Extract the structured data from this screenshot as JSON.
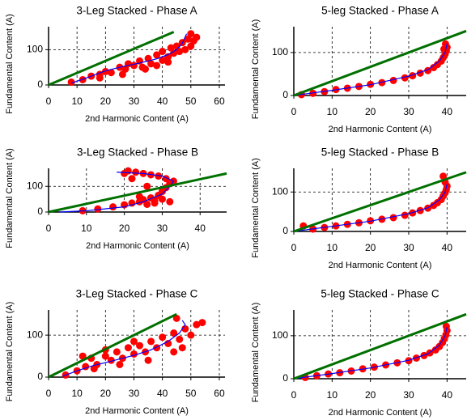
{
  "chart_data": [
    {
      "type": "scatter",
      "title": "3-Leg Stacked - Phase A",
      "x_label": "2nd Harmonic Content (A)",
      "y_label": "Fundamental Content (A)",
      "xlim": [
        0,
        62
      ],
      "ylim": [
        0,
        165
      ],
      "xticks": [
        0,
        10,
        20,
        30,
        40,
        50,
        60
      ],
      "yticks": [
        0,
        100
      ],
      "grid": true,
      "series": [
        {
          "mode": "markers",
          "color": "#ff0000",
          "x": [
            8,
            12,
            15,
            18,
            20,
            22,
            25,
            27,
            28,
            30,
            32,
            33,
            35,
            36,
            38,
            40,
            40,
            42,
            43,
            44,
            45,
            46,
            47,
            48,
            49,
            50,
            50,
            51,
            52,
            26,
            34,
            42,
            18,
            38
          ],
          "values": [
            8,
            15,
            25,
            30,
            38,
            35,
            50,
            45,
            60,
            55,
            68,
            50,
            75,
            60,
            85,
            70,
            95,
            80,
            105,
            90,
            110,
            95,
            120,
            100,
            130,
            110,
            145,
            125,
            135,
            30,
            45,
            65,
            20,
            55
          ]
        },
        {
          "mode": "line",
          "color": "#0000ff",
          "x": [
            8,
            14,
            20,
            26,
            32,
            38,
            42,
            45,
            47,
            48.5
          ],
          "values": [
            5,
            22,
            40,
            52,
            62,
            74,
            86,
            100,
            118,
            145
          ]
        },
        {
          "mode": "line",
          "color": "#007000",
          "x": [
            0,
            44
          ],
          "values": [
            0,
            150
          ]
        }
      ]
    },
    {
      "type": "scatter",
      "title": "5-leg Stacked - Phase A",
      "x_label": "2nd Harmonic Content (A)",
      "y_label": "Fundamental Content (A)",
      "xlim": [
        0,
        45
      ],
      "ylim": [
        0,
        160
      ],
      "xticks": [
        0,
        10,
        20,
        30,
        40
      ],
      "yticks": [
        0,
        100
      ],
      "grid": true,
      "series": [
        {
          "mode": "markers",
          "color": "#ff0000",
          "x": [
            2,
            5,
            8,
            11,
            14,
            17,
            20,
            23,
            26,
            29,
            31,
            33,
            35,
            36.5,
            37.5,
            38.5,
            39,
            39.5,
            39.8,
            40,
            39.6,
            39.2
          ],
          "values": [
            2,
            5,
            9,
            14,
            17,
            21,
            26,
            30,
            35,
            41,
            46,
            52,
            58,
            65,
            72,
            80,
            88,
            96,
            104,
            112,
            120,
            108
          ]
        },
        {
          "mode": "line",
          "color": "#0000ff",
          "x": [
            0,
            10,
            20,
            30,
            35,
            38,
            39.5,
            40
          ],
          "values": [
            0,
            12,
            25,
            45,
            60,
            80,
            100,
            120
          ]
        },
        {
          "mode": "line",
          "color": "#007000",
          "x": [
            0,
            45
          ],
          "values": [
            0,
            150
          ]
        }
      ]
    },
    {
      "type": "scatter",
      "title": "3-Leg Stacked - Phase B",
      "x_label": "2nd Harmonic Content (A)",
      "y_label": "Fundamental Content (A)",
      "xlim": [
        0,
        47
      ],
      "ylim": [
        0,
        170
      ],
      "xticks": [
        0,
        10,
        20,
        30,
        40
      ],
      "yticks": [
        0,
        100
      ],
      "grid": true,
      "series": [
        {
          "mode": "markers",
          "color": "#ff0000",
          "x": [
            9,
            13,
            17,
            20,
            22,
            24,
            25,
            26,
            27,
            28,
            29,
            30,
            31,
            32,
            33,
            31,
            29,
            27,
            25,
            23,
            21,
            24,
            28,
            30,
            32,
            26,
            22,
            20
          ],
          "values": [
            5,
            12,
            20,
            28,
            35,
            40,
            48,
            30,
            55,
            45,
            65,
            80,
            95,
            110,
            120,
            130,
            140,
            145,
            150,
            155,
            160,
            60,
            35,
            50,
            40,
            100,
            130,
            150
          ]
        },
        {
          "mode": "line",
          "color": "#0000ff",
          "x": [
            3,
            10,
            20,
            25,
            30,
            32,
            33,
            30,
            25,
            18
          ],
          "values": [
            0,
            5,
            20,
            40,
            70,
            100,
            120,
            140,
            150,
            155
          ]
        },
        {
          "mode": "line",
          "color": "#007000",
          "x": [
            0,
            47
          ],
          "values": [
            0,
            150
          ]
        }
      ]
    },
    {
      "type": "scatter",
      "title": "5-leg Stacked - Phase B",
      "x_label": "2nd Harmonic Content (A)",
      "y_label": "Fundamental Content (A)",
      "xlim": [
        0,
        45
      ],
      "ylim": [
        0,
        160
      ],
      "xticks": [
        0,
        10,
        20,
        30,
        40
      ],
      "yticks": [
        0,
        100
      ],
      "grid": true,
      "series": [
        {
          "mode": "markers",
          "color": "#ff0000",
          "x": [
            2.5,
            5,
            8,
            11,
            14,
            17,
            20,
            23,
            26,
            29,
            31,
            33,
            35,
            36.5,
            37.5,
            38.5,
            39,
            39.5,
            39.8,
            40,
            39.5,
            39
          ],
          "values": [
            14,
            6,
            10,
            14,
            18,
            22,
            27,
            31,
            35,
            41,
            47,
            53,
            59,
            66,
            73,
            81,
            90,
            98,
            106,
            115,
            125,
            140
          ]
        },
        {
          "mode": "line",
          "color": "#0000ff",
          "x": [
            0,
            10,
            20,
            30,
            35,
            38,
            39.5,
            40
          ],
          "values": [
            0,
            13,
            26,
            45,
            60,
            80,
            100,
            120
          ]
        },
        {
          "mode": "line",
          "color": "#007000",
          "x": [
            0,
            45
          ],
          "values": [
            0,
            150
          ]
        }
      ]
    },
    {
      "type": "scatter",
      "title": "3-Leg Stacked - Phase C",
      "x_label": "2nd Harmonic Content (A)",
      "y_label": "Fundamental Content (A)",
      "xlim": [
        0,
        62
      ],
      "ylim": [
        0,
        160
      ],
      "xticks": [
        0,
        10,
        20,
        30,
        40,
        50,
        60
      ],
      "yticks": [
        0,
        100
      ],
      "grid": true,
      "series": [
        {
          "mode": "markers",
          "color": "#ff0000",
          "x": [
            6,
            10,
            13,
            15,
            17,
            20,
            22,
            24,
            26,
            28,
            30,
            32,
            34,
            36,
            38,
            40,
            42,
            44,
            45,
            46,
            48,
            50,
            52,
            54,
            16,
            25,
            35,
            44,
            12,
            47,
            20,
            30
          ],
          "values": [
            5,
            15,
            25,
            45,
            30,
            50,
            40,
            60,
            45,
            70,
            55,
            75,
            60,
            85,
            70,
            95,
            80,
            105,
            140,
            90,
            115,
            100,
            125,
            130,
            20,
            30,
            40,
            60,
            50,
            70,
            65,
            85
          ]
        },
        {
          "mode": "line",
          "color": "#0000ff",
          "x": [
            5,
            10,
            16,
            22,
            30,
            36,
            42,
            46,
            48,
            47
          ],
          "values": [
            2,
            15,
            28,
            38,
            52,
            65,
            85,
            105,
            125,
            135
          ]
        },
        {
          "mode": "line",
          "color": "#007000",
          "x": [
            0,
            45
          ],
          "values": [
            0,
            150
          ]
        }
      ]
    },
    {
      "type": "scatter",
      "title": "5-leg Stacked - Phase C",
      "x_label": "2nd Harmonic Content (A)",
      "y_label": "Fundamental Content (A)",
      "xlim": [
        0,
        45
      ],
      "ylim": [
        0,
        160
      ],
      "xticks": [
        0,
        10,
        20,
        30,
        40
      ],
      "yticks": [
        0,
        100
      ],
      "grid": true,
      "series": [
        {
          "mode": "markers",
          "color": "#ff0000",
          "x": [
            3,
            6,
            9,
            12,
            15,
            18,
            21,
            24,
            27,
            30,
            32,
            34,
            35.5,
            37,
            38,
            38.8,
            39.3,
            39.7,
            40,
            39.8
          ],
          "values": [
            3,
            7,
            11,
            14,
            18,
            23,
            27,
            32,
            37,
            42,
            48,
            54,
            60,
            67,
            75,
            84,
            93,
            102,
            112,
            122
          ]
        },
        {
          "mode": "line",
          "color": "#0000ff",
          "x": [
            0,
            10,
            20,
            30,
            35,
            38,
            39.5,
            40
          ],
          "values": [
            0,
            12,
            25,
            43,
            58,
            78,
            100,
            120
          ]
        },
        {
          "mode": "line",
          "color": "#007000",
          "x": [
            0,
            45
          ],
          "values": [
            0,
            150
          ]
        }
      ]
    }
  ]
}
